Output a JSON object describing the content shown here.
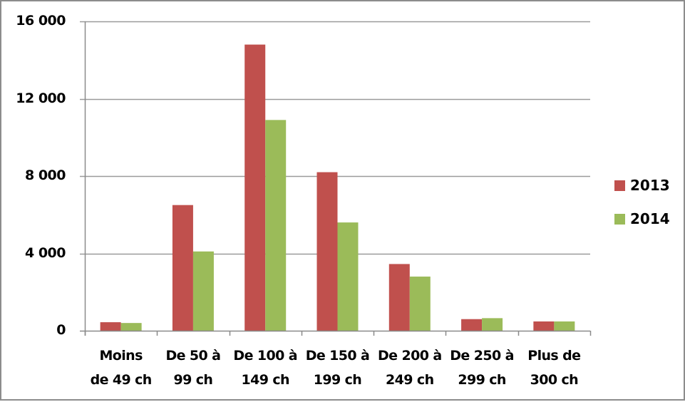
{
  "chart_data": {
    "type": "bar",
    "title": "",
    "xlabel": "",
    "ylabel": "",
    "ylim": [
      0,
      16000
    ],
    "yticks": [
      0,
      4000,
      8000,
      12000,
      16000
    ],
    "ytick_labels": [
      "0",
      "4 000",
      "8 000",
      "12 000",
      "16 000"
    ],
    "grid": true,
    "legend_position": "right",
    "categories": [
      [
        "Moins",
        "de 49 ch"
      ],
      [
        "De 50 à",
        "99 ch"
      ],
      [
        "De 100 à",
        "149 ch"
      ],
      [
        "De 150 à",
        "199 ch"
      ],
      [
        "De 200 à",
        "249 ch"
      ],
      [
        "De 250 à",
        "299 ch"
      ],
      [
        "Plus de",
        "300 ch"
      ]
    ],
    "series": [
      {
        "name": "2013",
        "color": "#C0504D",
        "values": [
          440,
          6500,
          14800,
          8200,
          3450,
          600,
          480
        ]
      },
      {
        "name": "2014",
        "color": "#9BBB59",
        "values": [
          400,
          4100,
          10900,
          5600,
          2800,
          650,
          480
        ]
      }
    ]
  }
}
